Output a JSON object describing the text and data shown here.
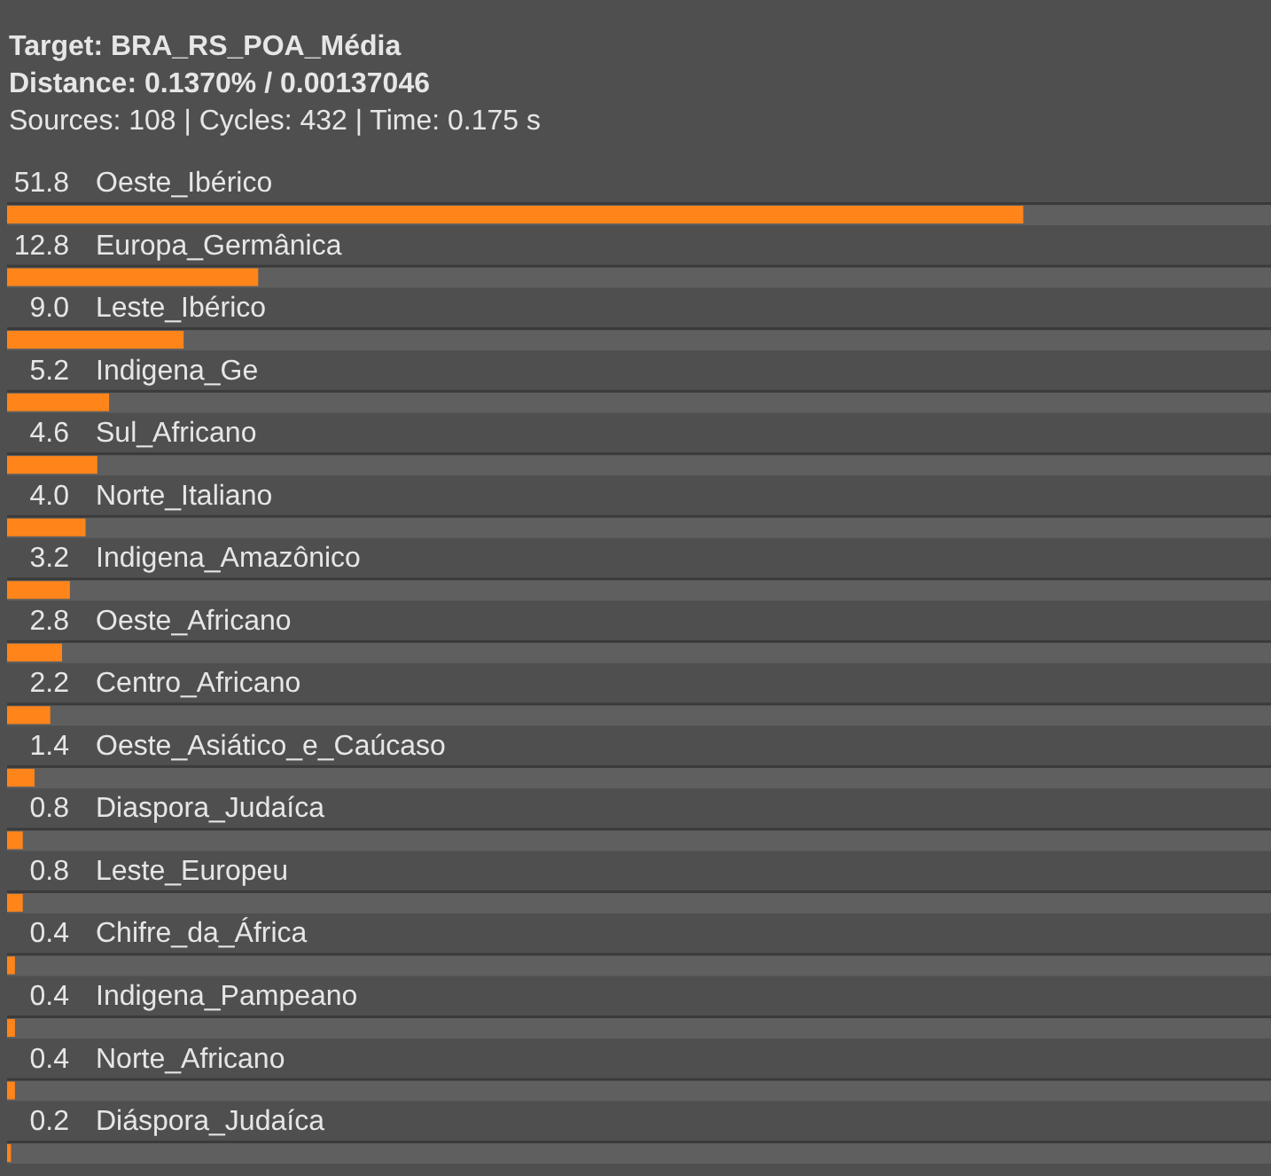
{
  "chart_data": {
    "type": "bar",
    "orientation": "horizontal",
    "title": "Target: BRA_RS_POA_Média",
    "subtitle": "Distance: 0.1370% / 0.00137046",
    "annotations": [
      "Sources: 108 | Cycles: 432 | Time: 0.175 s"
    ],
    "categories": [
      "Oeste_Ibérico",
      "Europa_Germânica",
      "Leste_Ibérico",
      "Indigena_Ge",
      "Sul_Africano",
      "Norte_Italiano",
      "Indigena_Amazônico",
      "Oeste_Africano",
      "Centro_Africano",
      "Oeste_Asiático_e_Caúcaso",
      "Diaspora_Judaíca",
      "Leste_Europeu",
      "Chifre_da_África",
      "Indigena_Pampeano",
      "Norte_Africano",
      "Diáspora_Judaíca"
    ],
    "values": [
      51.8,
      12.8,
      9.0,
      5.2,
      4.6,
      4.0,
      3.2,
      2.8,
      2.2,
      1.4,
      0.8,
      0.8,
      0.4,
      0.4,
      0.4,
      0.2
    ],
    "value_labels": [
      "51.8",
      "12.8",
      "9.0",
      "5.2",
      "4.6",
      "4.0",
      "3.2",
      "2.8",
      "2.2",
      "1.4",
      "0.8",
      "0.8",
      "0.4",
      "0.4",
      "0.4",
      "0.2"
    ],
    "color": "#ff851b"
  }
}
